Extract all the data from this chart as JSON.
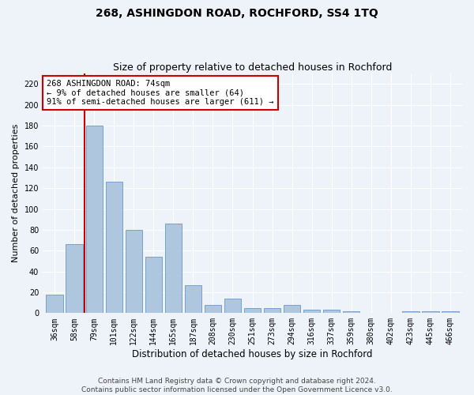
{
  "title": "268, ASHINGDON ROAD, ROCHFORD, SS4 1TQ",
  "subtitle": "Size of property relative to detached houses in Rochford",
  "xlabel": "Distribution of detached houses by size in Rochford",
  "ylabel": "Number of detached properties",
  "footer1": "Contains HM Land Registry data © Crown copyright and database right 2024.",
  "footer2": "Contains public sector information licensed under the Open Government Licence v3.0.",
  "annotation_line1": "268 ASHINGDON ROAD: 74sqm",
  "annotation_line2": "← 9% of detached houses are smaller (64)",
  "annotation_line3": "91% of semi-detached houses are larger (611) →",
  "bar_color": "#aec6de",
  "bar_edge_color": "#6699cc",
  "vline_color": "#cc0000",
  "annotation_box_color": "#cc0000",
  "bg_color": "#eef2f9",
  "categories": [
    "36sqm",
    "58sqm",
    "79sqm",
    "101sqm",
    "122sqm",
    "144sqm",
    "165sqm",
    "187sqm",
    "208sqm",
    "230sqm",
    "251sqm",
    "273sqm",
    "294sqm",
    "316sqm",
    "337sqm",
    "359sqm",
    "380sqm",
    "402sqm",
    "423sqm",
    "445sqm",
    "466sqm"
  ],
  "values": [
    18,
    66,
    180,
    126,
    80,
    54,
    86,
    27,
    8,
    14,
    5,
    5,
    8,
    3,
    3,
    2,
    0,
    0,
    2,
    2,
    2
  ],
  "ylim": [
    0,
    230
  ],
  "yticks": [
    0,
    20,
    40,
    60,
    80,
    100,
    120,
    140,
    160,
    180,
    200,
    220
  ],
  "vline_x_index": 1.5,
  "title_fontsize": 10,
  "subtitle_fontsize": 9,
  "tick_fontsize": 7,
  "ylabel_fontsize": 8,
  "xlabel_fontsize": 8.5,
  "annotation_fontsize": 7.5,
  "footer_fontsize": 6.5
}
